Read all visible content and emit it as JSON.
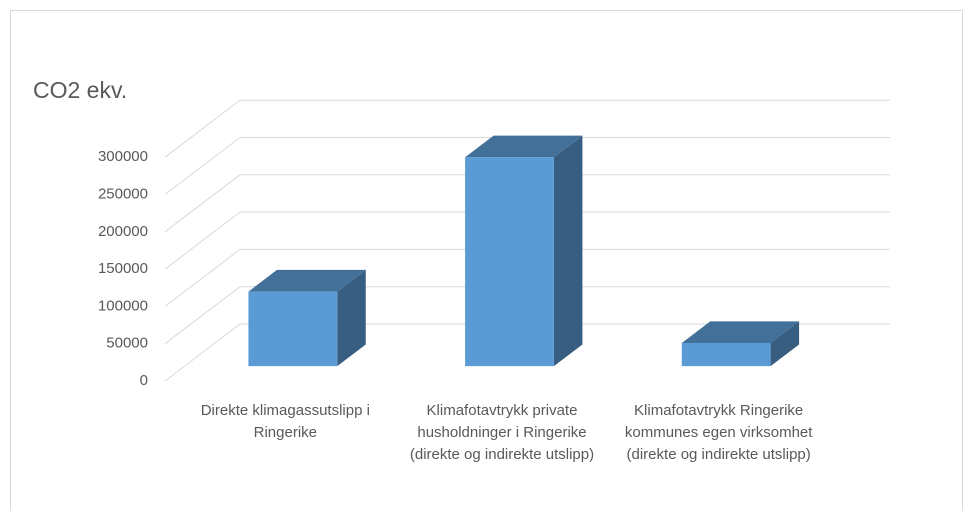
{
  "chart_data": {
    "type": "bar3d",
    "title": "CO2 ekv.",
    "categories": [
      "Direkte klimagassutslipp i Ringerike",
      "Klimafotavtrykk private husholdninger i Ringerike (direkte og indirekte utslipp)",
      "Klimafotavtrykk Ringerike kommunes egen virksomhet (direkte og indirekte utslipp)"
    ],
    "values": [
      100000,
      280000,
      31000
    ],
    "color": "#5b9bd5",
    "ylim": [
      0,
      300000
    ],
    "yticks": [
      0,
      50000,
      100000,
      150000,
      200000,
      250000,
      300000
    ],
    "grid": true
  }
}
